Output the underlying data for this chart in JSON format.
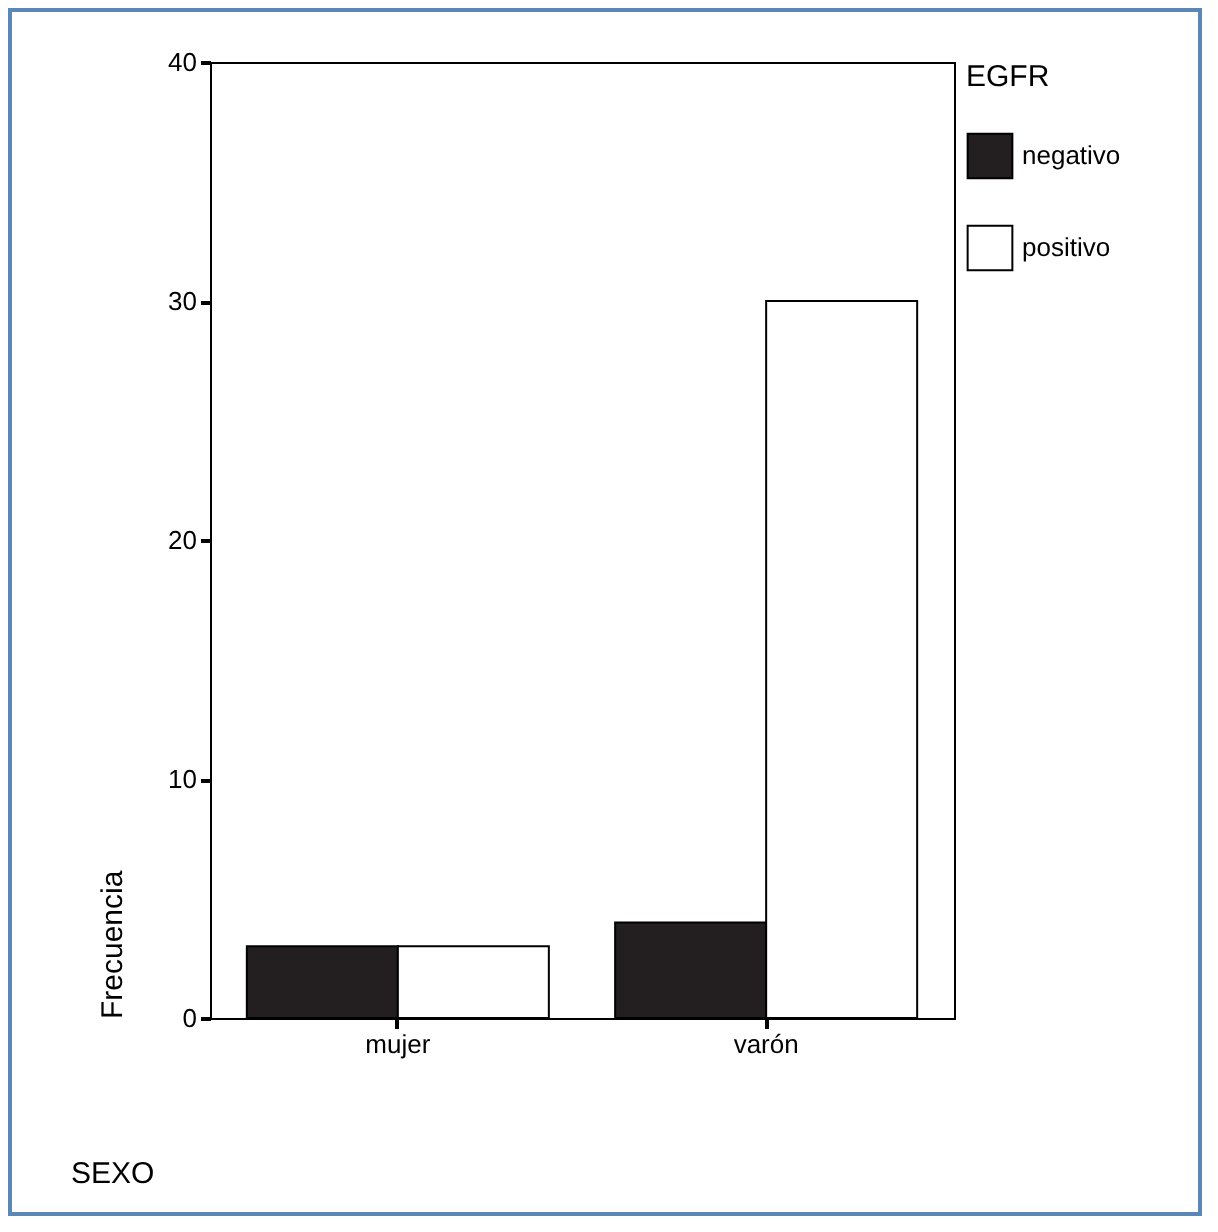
{
  "chart_data": {
    "type": "bar",
    "xlabel": "SEXO",
    "ylabel": "Frecuencia",
    "legend_title": "EGFR",
    "categories": [
      "mujer",
      "varón"
    ],
    "series": [
      {
        "name": "negativo",
        "color": "#231f20",
        "values": [
          3,
          4
        ]
      },
      {
        "name": "positivo",
        "color": "#ffffff",
        "values": [
          3,
          30
        ]
      }
    ],
    "ylim": [
      0,
      40
    ],
    "yticks": [
      0,
      10,
      20,
      30,
      40
    ],
    "grid": false,
    "legend": "right"
  }
}
